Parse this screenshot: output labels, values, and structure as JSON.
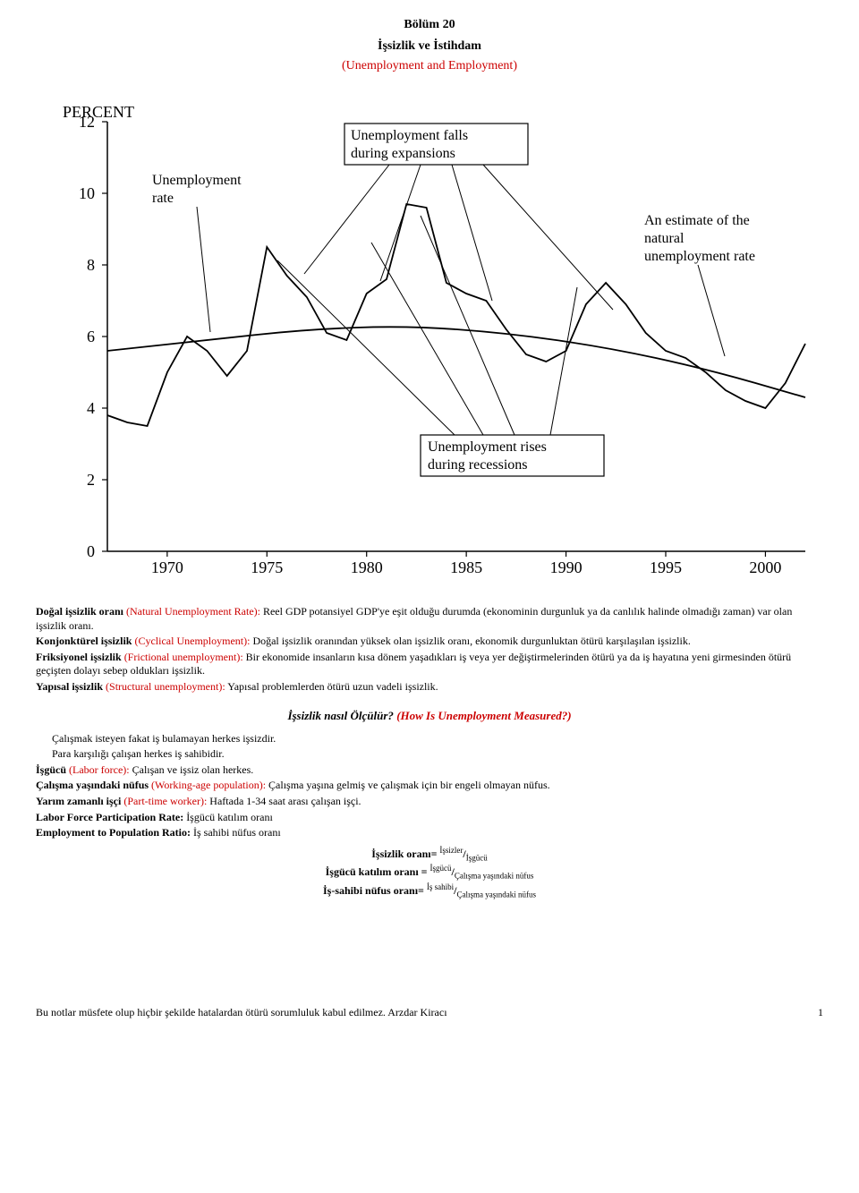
{
  "header": {
    "chapter": "Bölüm 20",
    "title": "İşsizlik ve İstihdam",
    "title_en": "(Unemployment and Employment)"
  },
  "chart": {
    "type": "line",
    "y_axis_label": "PERCENT",
    "y_ticks": [
      0,
      2,
      4,
      6,
      8,
      10,
      12
    ],
    "x_ticks": [
      1970,
      1975,
      1980,
      1985,
      1990,
      1995,
      2000
    ],
    "ylim": [
      0,
      12
    ],
    "xlim": [
      1967,
      2002
    ],
    "line_color": "#000000",
    "background_color": "#ffffff",
    "callouts": {
      "rate_label": "Unemployment\nrate",
      "expansions": "Unemployment falls\nduring expansions",
      "recessions": "Unemployment rises\nduring recessions",
      "natural": "An estimate of the\nnatural\nunemployment rate"
    },
    "unemployment_series": [
      [
        1967,
        3.8
      ],
      [
        1968,
        3.6
      ],
      [
        1969,
        3.5
      ],
      [
        1970,
        5.0
      ],
      [
        1971,
        6.0
      ],
      [
        1972,
        5.6
      ],
      [
        1973,
        4.9
      ],
      [
        1974,
        5.6
      ],
      [
        1975,
        8.5
      ],
      [
        1976,
        7.7
      ],
      [
        1977,
        7.1
      ],
      [
        1978,
        6.1
      ],
      [
        1979,
        5.9
      ],
      [
        1980,
        7.2
      ],
      [
        1981,
        7.6
      ],
      [
        1982,
        9.7
      ],
      [
        1983,
        9.6
      ],
      [
        1984,
        7.5
      ],
      [
        1985,
        7.2
      ],
      [
        1986,
        7.0
      ],
      [
        1987,
        6.2
      ],
      [
        1988,
        5.5
      ],
      [
        1989,
        5.3
      ],
      [
        1990,
        5.6
      ],
      [
        1991,
        6.9
      ],
      [
        1992,
        7.5
      ],
      [
        1993,
        6.9
      ],
      [
        1994,
        6.1
      ],
      [
        1995,
        5.6
      ],
      [
        1996,
        5.4
      ],
      [
        1997,
        5.0
      ],
      [
        1998,
        4.5
      ],
      [
        1999,
        4.2
      ],
      [
        2000,
        4.0
      ],
      [
        2001,
        4.7
      ],
      [
        2002,
        5.8
      ]
    ],
    "natural_rate_series": [
      [
        1967,
        5.6
      ],
      [
        1972,
        5.9
      ],
      [
        1977,
        6.2
      ],
      [
        1982,
        6.3
      ],
      [
        1987,
        6.1
      ],
      [
        1992,
        5.7
      ],
      [
        1997,
        5.1
      ],
      [
        2002,
        4.3
      ]
    ]
  },
  "definitions": {
    "d1_term": "Doğal işsizlik oranı ",
    "d1_en": "(Natural Unemployment Rate): ",
    "d1_body": "Reel GDP potansiyel GDP'ye eşit olduğu durumda (ekonominin durgunluk ya da canlılık halinde olmadığı zaman) var olan işsizlik oranı.",
    "d2_term": "Konjonktürel işsizlik ",
    "d2_en": "(Cyclical Unemployment): ",
    "d2_body": "Doğal işsizlik oranından yüksek olan işsizlik oranı, ekonomik durgunluktan ötürü karşılaşılan işsizlik.",
    "d3_term": "Friksiyonel işsizlik ",
    "d3_en": "(Frictional unemployment): ",
    "d3_body": "Bir ekonomide insanların kısa dönem yaşadıkları iş veya yer değiştirmelerinden ötürü ya da iş hayatına yeni girmesinden ötürü geçişten dolayı sebep oldukları işsizlik.",
    "d4_term": "Yapısal işsizlik ",
    "d4_en": "(Structural unemployment): ",
    "d4_body": "Yapısal problemlerden ötürü uzun vadeli işsizlik."
  },
  "section2": {
    "heading_tr": "İşsizlik nasıl Ölçülür? ",
    "heading_en": "(How Is Unemployment Measured?)",
    "line1": "Çalışmak isteyen fakat iş bulamayan herkes işsizdir.",
    "line2": "Para karşılığı çalışan herkes iş sahibidir.",
    "l3_term": "İşgücü ",
    "l3_en": "(Labor force): ",
    "l3_body": "Çalışan ve işsiz olan herkes.",
    "l4_term": "Çalışma yaşındaki nüfus ",
    "l4_en": "(Working-age population): ",
    "l4_body": "Çalışma yaşına gelmiş ve çalışmak için bir engeli olmayan nüfus.",
    "l5_term": "Yarım zamanlı işçi ",
    "l5_en": "(Part-time worker): ",
    "l5_body": "Haftada 1-34 saat arası çalışan işçi.",
    "l6_term": "Labor Force Participation Rate: ",
    "l6_body": "İşgücü katılım oranı",
    "l7_term": "Employment to Population Ratio: ",
    "l7_body": "İş sahibi nüfus oranı"
  },
  "formulas": {
    "f1_label": "İşsizlik oranı= ",
    "f1_num": "İşsizler",
    "f1_den": "İşgücü",
    "f2_label": "İşgücü katılım oranı = ",
    "f2_num": "İşgücü",
    "f2_den": "Çalışma yaşındaki nüfus",
    "f3_label": "İş-sahibi nüfus oranı= ",
    "f3_num": "İş sahibi",
    "f3_den": "Çalışma yaşındaki nüfus"
  },
  "footer": {
    "disclaimer": "Bu notlar müsfete olup hiçbir şekilde hatalardan ötürü sorumluluk kabul edilmez. Arzdar Kiracı",
    "page": "1"
  }
}
